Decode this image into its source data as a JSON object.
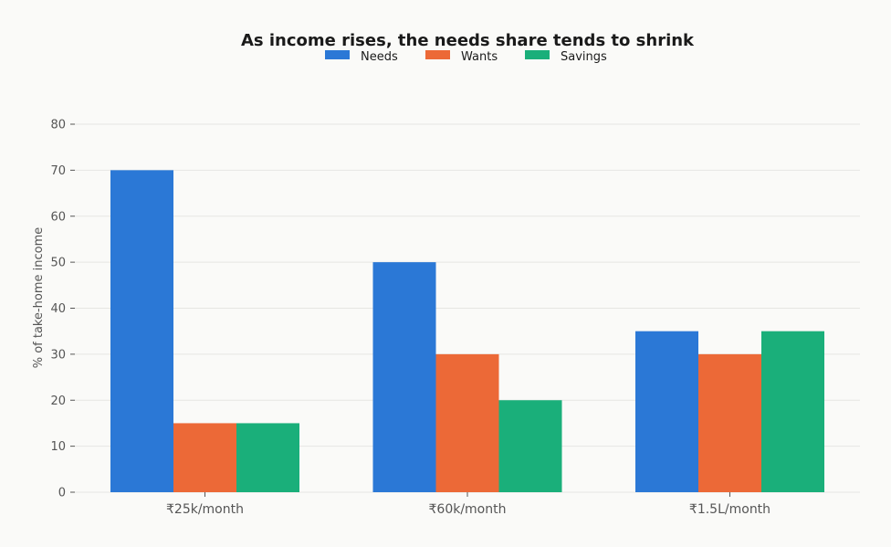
{
  "chart_data": {
    "type": "bar",
    "title": "As income rises, the needs share tends to shrink",
    "xlabel": "",
    "ylabel": "% of take-home income",
    "categories": [
      "₹25k/month",
      "₹60k/month",
      "₹1.5L/month"
    ],
    "series": [
      {
        "name": "Needs",
        "color": "#2b78d6",
        "values": [
          70,
          50,
          35
        ]
      },
      {
        "name": "Wants",
        "color": "#ec6937",
        "values": [
          15,
          30,
          30
        ]
      },
      {
        "name": "Savings",
        "color": "#1aaf7a",
        "values": [
          15,
          20,
          35
        ]
      }
    ],
    "ylim": [
      0,
      80
    ],
    "yticks": [
      0,
      10,
      20,
      30,
      40,
      50,
      60,
      70,
      80
    ],
    "grid": true,
    "legend_position": "top-center"
  }
}
